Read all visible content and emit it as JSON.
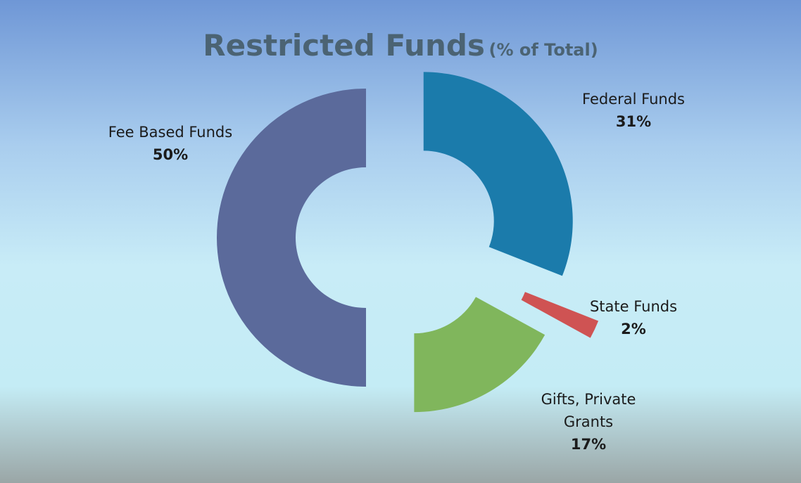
{
  "chart_data": {
    "type": "donut",
    "title": "Restricted Funds",
    "subtitle": "(% of Total)",
    "categories": [
      "Federal Funds",
      "State Funds",
      "Gifts, Private Grants",
      "Fee Based Funds"
    ],
    "values": [
      31,
      2,
      17,
      50
    ],
    "value_labels": [
      "31%",
      "2%",
      "17%",
      "50%"
    ],
    "colors": [
      "#1b7bab",
      "#cf5353",
      "#80b65c",
      "#5b6a9b"
    ]
  }
}
